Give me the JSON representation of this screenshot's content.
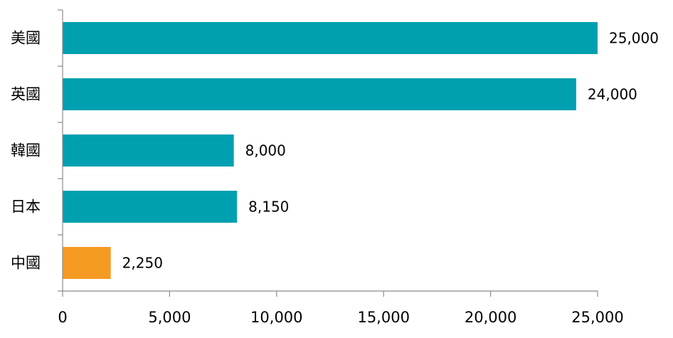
{
  "chart_data": {
    "type": "bar",
    "orientation": "horizontal",
    "categories": [
      "美國",
      "英國",
      "韓國",
      "日本",
      "中國"
    ],
    "values": [
      25000,
      24000,
      8000,
      8150,
      2250
    ],
    "data_labels": [
      "25,000",
      "24,000",
      "8,000",
      "8,150",
      "2,250"
    ],
    "bar_colors": [
      "#00a0b0",
      "#00a0b0",
      "#00a0b0",
      "#00a0b0",
      "#f59a23"
    ],
    "xlim": [
      0,
      25000
    ],
    "x_ticks": [
      0,
      5000,
      10000,
      15000,
      20000,
      25000
    ],
    "x_tick_labels": [
      "0",
      "5,000",
      "10,000",
      "15,000",
      "20,000",
      "25,000"
    ],
    "title": "",
    "xlabel": "",
    "ylabel": "",
    "grid": false,
    "legend": "none"
  }
}
